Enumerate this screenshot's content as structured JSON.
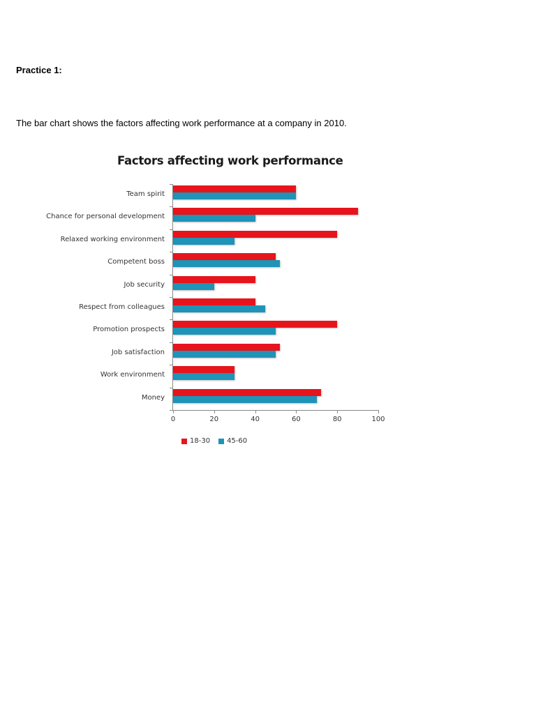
{
  "document": {
    "heading": "Practice 1:",
    "description": "The bar chart shows the factors affecting work performance at a company in 2010."
  },
  "colors": {
    "series_18_30": "#e8141c",
    "series_45_60": "#1f93b8"
  },
  "chart_data": {
    "type": "bar",
    "orientation": "horizontal",
    "title": "Factors affecting work performance",
    "xlabel": "",
    "ylabel": "",
    "xlim": [
      0,
      100
    ],
    "xticks": [
      0,
      20,
      40,
      60,
      80,
      100
    ],
    "grid": false,
    "legend_position": "bottom",
    "categories": [
      "Team spirit",
      "Chance for personal development",
      "Relaxed working environment",
      "Competent boss",
      "Job security",
      "Respect from colleagues",
      "Promotion prospects",
      "Job satisfaction",
      "Work environment",
      "Money"
    ],
    "series": [
      {
        "name": "18-30",
        "color": "#e8141c",
        "values": [
          60,
          90,
          80,
          50,
          40,
          40,
          80,
          52,
          30,
          72
        ]
      },
      {
        "name": "45-60",
        "color": "#1f93b8",
        "values": [
          60,
          40,
          30,
          52,
          20,
          45,
          50,
          50,
          30,
          70
        ]
      }
    ]
  }
}
